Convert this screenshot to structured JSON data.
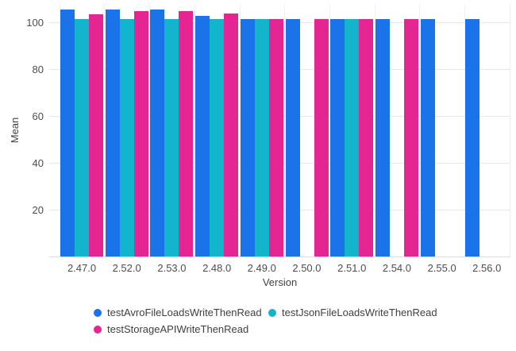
{
  "chart_data": {
    "type": "bar",
    "title": "",
    "xlabel": "Version",
    "ylabel": "Mean",
    "categories": [
      "2.47.0",
      "2.52.0",
      "2.53.0",
      "2.48.0",
      "2.49.0",
      "2.50.0",
      "2.51.0",
      "2.54.0",
      "2.55.0",
      "2.56.0"
    ],
    "series": [
      {
        "name": "testAvroFileLoadsWriteThenRead",
        "color": "#1A73E8",
        "values": [
          105.5,
          105.5,
          105.5,
          103,
          101.5,
          101.5,
          101.5,
          101.5,
          101.5,
          101.5
        ]
      },
      {
        "name": "testJsonFileLoadsWriteThenRead",
        "color": "#12B5CB",
        "values": [
          101.5,
          101.5,
          101.5,
          101.5,
          101.5,
          null,
          101.5,
          null,
          null,
          null
        ]
      },
      {
        "name": "testStorageAPIWriteThenRead",
        "color": "#E52592",
        "values": [
          103.5,
          105,
          105,
          104,
          101.5,
          101.5,
          101.5,
          101.5,
          null,
          null
        ]
      }
    ],
    "yticks": [
      20,
      40,
      60,
      80,
      100
    ],
    "ylim": [
      0,
      108
    ],
    "grid": true,
    "legend_position": "bottom"
  },
  "colors": {
    "background": "#ffffff",
    "grid_horizontal": "#e8e8e8",
    "grid_vertical": "#f0f0f0",
    "axis_baseline": "#dadce0",
    "tick_text": "#4d4d4d",
    "axis_title_text": "#424242",
    "legend_text": "#3f3f3f"
  }
}
